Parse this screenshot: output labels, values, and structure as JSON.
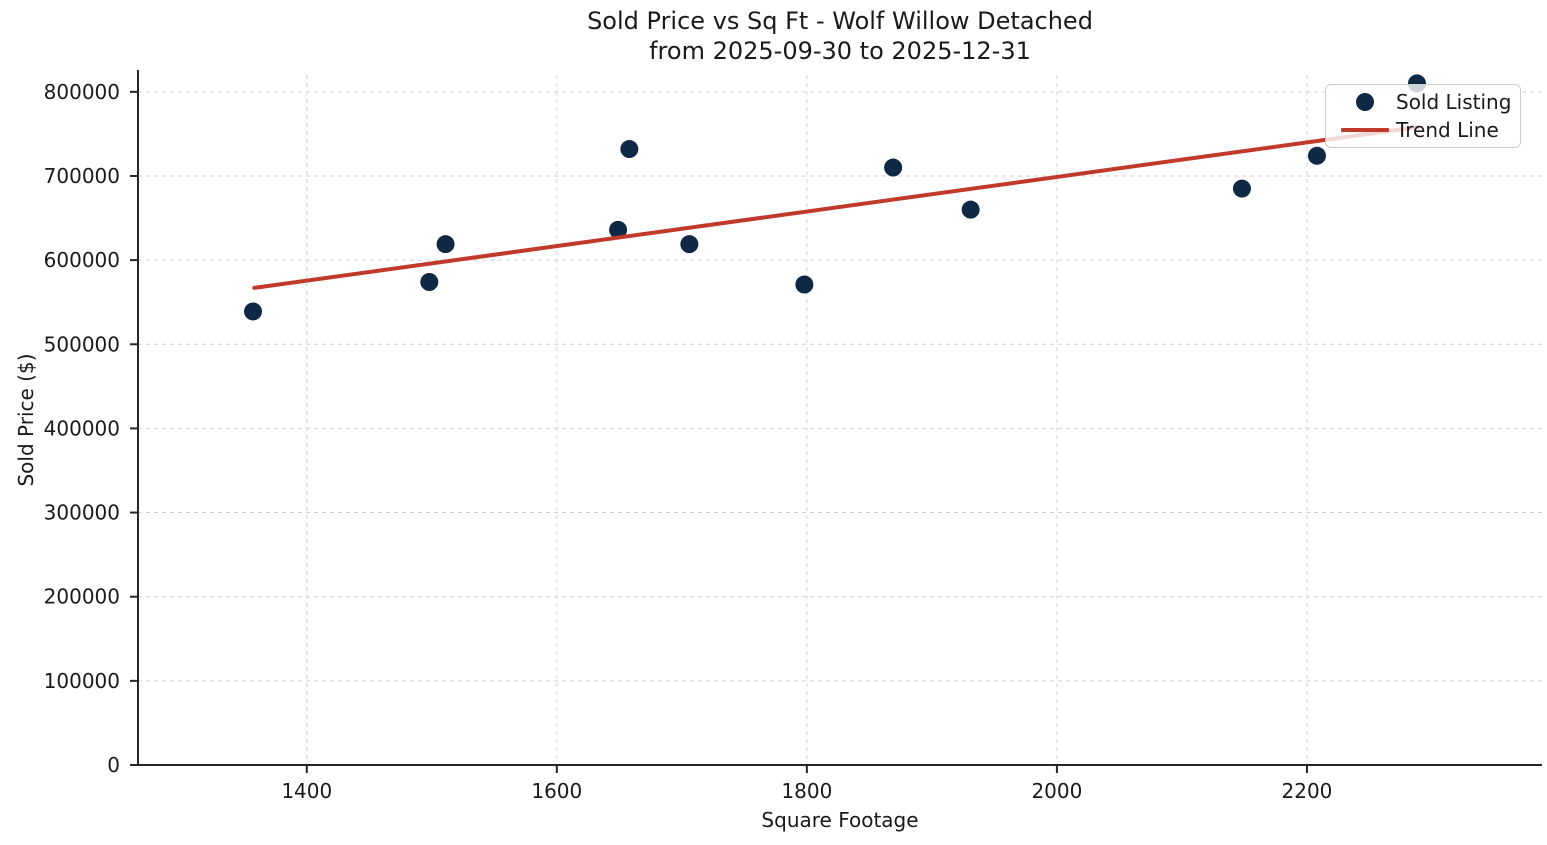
{
  "chart_data": {
    "type": "scatter",
    "title": "Sold Price vs Sq Ft - Wolf Willow Detached",
    "subtitle": "from 2025-09-30 to 2025-12-31",
    "xlabel": "Square Footage",
    "ylabel": "Sold Price ($)",
    "xlim": [
      1265,
      2388
    ],
    "ylim": [
      0,
      820000
    ],
    "x_ticks": [
      1400,
      1600,
      1800,
      2000,
      2200
    ],
    "y_ticks": [
      0,
      100000,
      200000,
      300000,
      400000,
      500000,
      600000,
      700000,
      800000
    ],
    "grid": true,
    "grid_style": "dashed",
    "legend_position": "upper right",
    "series": [
      {
        "name": "Sold Listing",
        "type": "scatter",
        "color": "#0f2845",
        "marker_size": 9,
        "points": [
          [
            1357,
            539000
          ],
          [
            1498,
            574000
          ],
          [
            1511,
            619000
          ],
          [
            1649,
            636000
          ],
          [
            1658,
            732000
          ],
          [
            1706,
            619000
          ],
          [
            1798,
            571000
          ],
          [
            1869,
            710000
          ],
          [
            1931,
            660000
          ],
          [
            2148,
            685000
          ],
          [
            2208,
            724000
          ],
          [
            2288,
            810000
          ]
        ]
      },
      {
        "name": "Trend Line",
        "type": "line",
        "color": "#c0392b",
        "line_width": 4,
        "points": [
          [
            1358,
            567000
          ],
          [
            2288,
            758000
          ]
        ]
      }
    ],
    "colors": {
      "scatter": "#0f2845",
      "trend": "#c0392b",
      "grid": "#cccccc",
      "axis": "#262626",
      "text": "#1a1a1a",
      "background": "#ffffff"
    }
  }
}
